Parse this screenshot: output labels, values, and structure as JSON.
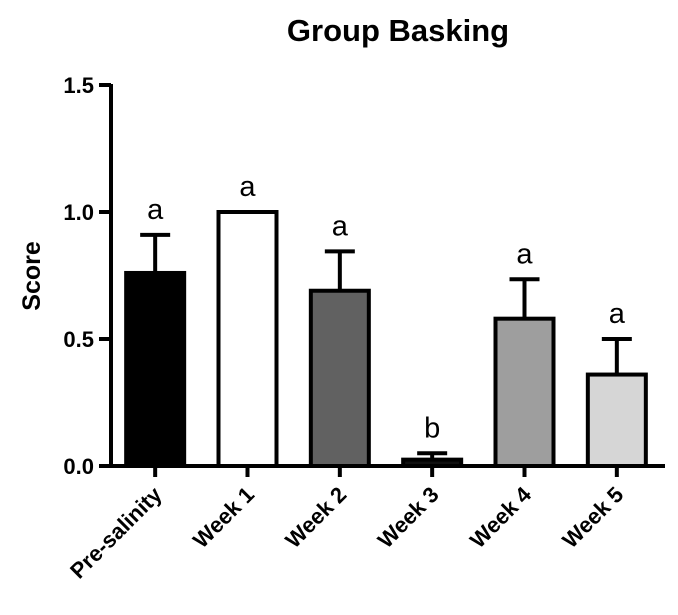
{
  "chart_data": {
    "type": "bar",
    "title": "Group Basking",
    "xlabel": "",
    "ylabel": "Score",
    "ylim": [
      0,
      1.5
    ],
    "yticks": [
      0.0,
      0.5,
      1.0,
      1.5
    ],
    "ytick_labels": [
      "0.0",
      "0.5",
      "1.0",
      "1.5"
    ],
    "grid": false,
    "legend": "none",
    "categories": [
      "Pre-salinity",
      "Week 1",
      "Week 2",
      "Week 3",
      "Week 4",
      "Week 5"
    ],
    "values": [
      0.76,
      1.0,
      0.69,
      0.025,
      0.58,
      0.36
    ],
    "error_upper": [
      0.15,
      0.0,
      0.155,
      0.025,
      0.155,
      0.14
    ],
    "significance_labels": [
      "a",
      "a",
      "a",
      "b",
      "a",
      "a"
    ],
    "bar_colors": [
      "#000000",
      "#ffffff",
      "#616161",
      "#101010",
      "#9e9e9e",
      "#d6d6d6"
    ]
  }
}
